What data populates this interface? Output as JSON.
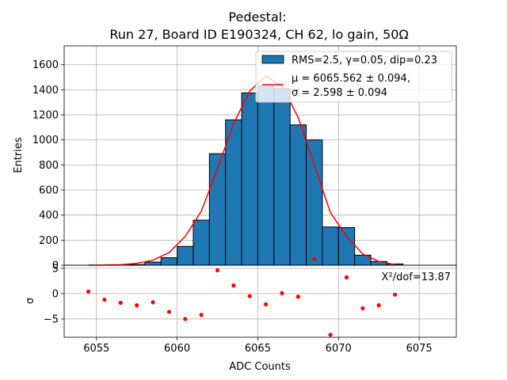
{
  "chart_data": {
    "type": "bar",
    "title": "Pedestal:",
    "subtitle": "Run 27, Board ID E190324, CH 62, lo gain, 50Ω",
    "xlabel": "ADC Counts",
    "ylabel_top": "Entries",
    "ylabel_bottom": "σ",
    "xlim": [
      6053.0,
      6077.3
    ],
    "ylim_top": [
      0,
      1750
    ],
    "ylim_bottom": [
      -8.6,
      5.6
    ],
    "x_ticks": [
      6055,
      6060,
      6065,
      6070,
      6075
    ],
    "x_tick_labels": [
      "6055",
      "6060",
      "6065",
      "6070",
      "6075"
    ],
    "y_ticks_top": [
      0,
      200,
      400,
      600,
      800,
      1000,
      1200,
      1400,
      1600
    ],
    "y_tick_labels_top": [
      "0",
      "200",
      "400",
      "600",
      "800",
      "1000",
      "1200",
      "1400",
      "1600"
    ],
    "y_ticks_bottom": [
      -5,
      0,
      5
    ],
    "y_tick_labels_bottom": [
      "−5",
      "0",
      "5"
    ],
    "grid": true,
    "legend_placement": "top-right",
    "legend": [
      {
        "label": "RMS=2.5, γ=0.05, dip=0.23",
        "kind": "bar"
      },
      {
        "label_line1": "μ = 6065.562 ± 0.094,",
        "label_line2": "σ = 2.598 ± 0.094",
        "kind": "line"
      }
    ],
    "annotation": "X²/dof=13.87",
    "histogram": {
      "bin_edges": [
        6057,
        6058,
        6059,
        6060,
        6061,
        6062,
        6063,
        6064,
        6065,
        6066,
        6067,
        6068,
        6069,
        6070,
        6071,
        6072,
        6073,
        6074
      ],
      "counts": [
        5,
        25,
        60,
        150,
        360,
        890,
        1160,
        1375,
        1430,
        1410,
        1120,
        1000,
        305,
        300,
        80,
        30,
        10
      ]
    },
    "fit_curve": {
      "x": [
        6054.5,
        6055.5,
        6056.5,
        6057.5,
        6058.5,
        6059.5,
        6060.5,
        6061.5,
        6062.5,
        6063.5,
        6064.5,
        6065.5,
        6066.5,
        6067.5,
        6068.5,
        6069.5,
        6070.5,
        6071.5,
        6072.5,
        6073.5
      ],
      "y": [
        0,
        1,
        4,
        15,
        40,
        100,
        230,
        430,
        770,
        1130,
        1390,
        1510,
        1430,
        1180,
        800,
        420,
        230,
        90,
        30,
        5
      ]
    },
    "residuals": {
      "x": [
        6054.5,
        6055.5,
        6056.5,
        6057.5,
        6058.5,
        6059.5,
        6060.5,
        6061.5,
        6062.5,
        6063.5,
        6064.5,
        6065.5,
        6066.5,
        6067.5,
        6068.5,
        6069.5,
        6070.5,
        6071.5,
        6072.5,
        6073.5
      ],
      "y": [
        0.4,
        -1.2,
        -1.8,
        -2.3,
        -1.7,
        -3.6,
        -5.0,
        -4.2,
        4.6,
        1.6,
        -0.5,
        -2.1,
        0.1,
        -0.6,
        6.8,
        -8.1,
        3.2,
        -2.9,
        -2.3,
        -0.2
      ]
    },
    "colors": {
      "bar_fill": "#1f77b4",
      "bar_edge": "#000000",
      "fit_line": "#ff0000",
      "residual_points": "#ff0000"
    }
  }
}
